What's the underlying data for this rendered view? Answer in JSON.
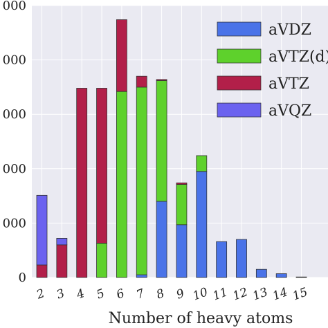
{
  "chart_data": {
    "type": "bar",
    "stacked": true,
    "xlabel": "Number of heavy atoms",
    "ylabel": "",
    "categories": [
      "2",
      "3",
      "4",
      "5",
      "6",
      "7",
      "8",
      "9",
      "10",
      "11",
      "12",
      "13",
      "14",
      "15"
    ],
    "ylim": [
      0,
      5000
    ],
    "yticks": [
      0,
      1000,
      2000,
      3000,
      4000,
      5000
    ],
    "ytick_labels": [
      "0",
      "000",
      "000",
      "000",
      "000",
      "000"
    ],
    "grid": true,
    "legend_placement": "top-right",
    "series": [
      {
        "name": "aVDZ",
        "color": "#4a73e8",
        "values": [
          0,
          0,
          0,
          0,
          0,
          50,
          1400,
          970,
          1950,
          660,
          700,
          150,
          70,
          10
        ]
      },
      {
        "name": "aVTZ(d)",
        "color": "#5ed12c",
        "values": [
          0,
          0,
          0,
          630,
          3420,
          3450,
          2220,
          740,
          290,
          0,
          0,
          0,
          0,
          0
        ]
      },
      {
        "name": "aVTZ",
        "color": "#b21f49",
        "values": [
          230,
          600,
          3480,
          2850,
          1320,
          200,
          20,
          30,
          0,
          0,
          0,
          0,
          0,
          0
        ]
      },
      {
        "name": "aVQZ",
        "color": "#6b62ef",
        "values": [
          1280,
          120,
          0,
          0,
          0,
          0,
          0,
          0,
          0,
          0,
          0,
          0,
          0,
          0
        ]
      }
    ]
  }
}
